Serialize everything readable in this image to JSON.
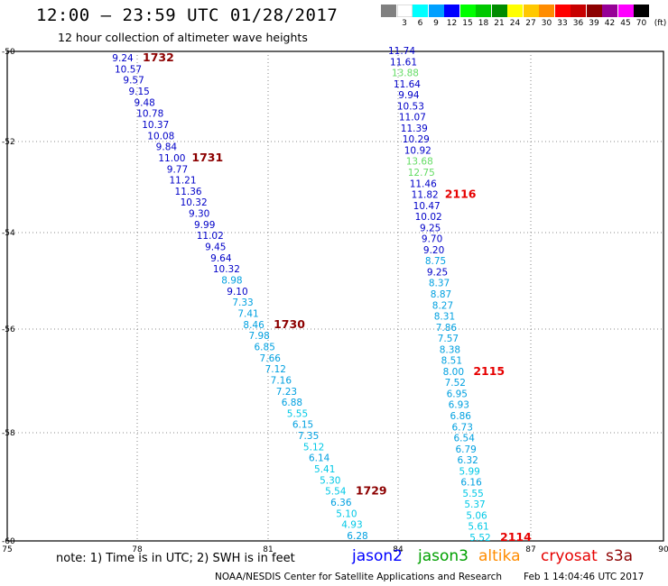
{
  "header": {
    "title": "12:00 – 23:59 UTC 01/28/2017",
    "subtitle": "12 hour collection of altimeter wave heights"
  },
  "scale": {
    "unit": "(ft)",
    "bins": [
      {
        "label": "",
        "color": "#808080"
      },
      {
        "label": "3",
        "color": "#ffffff"
      },
      {
        "label": "6",
        "color": "#00ffff"
      },
      {
        "label": "9",
        "color": "#00a0ff"
      },
      {
        "label": "12",
        "color": "#0000ff"
      },
      {
        "label": "15",
        "color": "#00ff00"
      },
      {
        "label": "18",
        "color": "#00c800"
      },
      {
        "label": "21",
        "color": "#008c00"
      },
      {
        "label": "24",
        "color": "#ffff00"
      },
      {
        "label": "27",
        "color": "#ffc800"
      },
      {
        "label": "30",
        "color": "#ff8c00"
      },
      {
        "label": "33",
        "color": "#ff0000"
      },
      {
        "label": "36",
        "color": "#c80000"
      },
      {
        "label": "39",
        "color": "#8c0000"
      },
      {
        "label": "42",
        "color": "#960096"
      },
      {
        "label": "45",
        "color": "#ff00ff"
      },
      {
        "label": "70",
        "color": "#000000"
      }
    ]
  },
  "map": {
    "lon_labels": [
      "75",
      "78",
      "81",
      "84",
      "87",
      "90"
    ],
    "lat_labels": [
      "-50",
      "-52",
      "-54",
      "-56",
      "-58",
      "-60"
    ]
  },
  "tracks": [
    {
      "points": [
        {
          "v": "9.24",
          "c": "#0000c8"
        },
        {
          "v": "10.57",
          "c": "#0000c8"
        },
        {
          "v": "9.57",
          "c": "#0000c8"
        },
        {
          "v": "9.15",
          "c": "#0000c8"
        },
        {
          "v": "9.48",
          "c": "#0000c8"
        },
        {
          "v": "10.78",
          "c": "#0000c8"
        },
        {
          "v": "10.37",
          "c": "#0000c8"
        },
        {
          "v": "10.08",
          "c": "#0000c8"
        },
        {
          "v": "9.84",
          "c": "#0000c8"
        },
        {
          "v": "11.00",
          "c": "#0000c8"
        },
        {
          "v": "9.77",
          "c": "#0000c8"
        },
        {
          "v": "11.21",
          "c": "#0000c8"
        },
        {
          "v": "11.36",
          "c": "#0000c8"
        },
        {
          "v": "10.32",
          "c": "#0000c8"
        },
        {
          "v": "9.30",
          "c": "#0000c8"
        },
        {
          "v": "9.99",
          "c": "#0000c8"
        },
        {
          "v": "11.02",
          "c": "#0000c8"
        },
        {
          "v": "9.45",
          "c": "#0000c8"
        },
        {
          "v": "9.64",
          "c": "#0000c8"
        },
        {
          "v": "10.32",
          "c": "#0000c8"
        },
        {
          "v": "8.98",
          "c": "#00a0e0"
        },
        {
          "v": "9.10",
          "c": "#0000c8"
        },
        {
          "v": "7.33",
          "c": "#00a0e0"
        },
        {
          "v": "7.41",
          "c": "#00a0e0"
        },
        {
          "v": "8.46",
          "c": "#00a0e0"
        },
        {
          "v": "7.98",
          "c": "#00a0e0"
        },
        {
          "v": "6.85",
          "c": "#00a0e0"
        },
        {
          "v": "7.66",
          "c": "#00a0e0"
        },
        {
          "v": "7.12",
          "c": "#00a0e0"
        },
        {
          "v": "7.16",
          "c": "#00a0e0"
        },
        {
          "v": "7.23",
          "c": "#00a0e0"
        },
        {
          "v": "6.88",
          "c": "#00a0e0"
        },
        {
          "v": "5.55",
          "c": "#00c8e6"
        },
        {
          "v": "6.15",
          "c": "#00a0e0"
        },
        {
          "v": "7.35",
          "c": "#00a0e0"
        },
        {
          "v": "5.12",
          "c": "#00c8e6"
        },
        {
          "v": "6.14",
          "c": "#00a0e0"
        },
        {
          "v": "5.41",
          "c": "#00c8e6"
        },
        {
          "v": "5.30",
          "c": "#00c8e6"
        },
        {
          "v": "5.54",
          "c": "#00c8e6"
        },
        {
          "v": "6.36",
          "c": "#00a0e0"
        },
        {
          "v": "5.10",
          "c": "#00c8e6"
        },
        {
          "v": "4.93",
          "c": "#00c8e6"
        },
        {
          "v": "6.28",
          "c": "#00a0e0"
        }
      ],
      "times": [
        {
          "label": "1732",
          "color": "#8c0000",
          "at": 0
        },
        {
          "label": "1731",
          "color": "#8c0000",
          "at": 9
        },
        {
          "label": "1730",
          "color": "#8c0000",
          "at": 24
        },
        {
          "label": "1729",
          "color": "#8c0000",
          "at": 39
        }
      ]
    },
    {
      "points": [
        {
          "v": "11.74",
          "c": "#0000c8"
        },
        {
          "v": "11.61",
          "c": "#0000c8"
        },
        {
          "v": "13.88",
          "c": "#64dc64"
        },
        {
          "v": "11.64",
          "c": "#0000c8"
        },
        {
          "v": "9.94",
          "c": "#0000c8"
        },
        {
          "v": "10.53",
          "c": "#0000c8"
        },
        {
          "v": "11.07",
          "c": "#0000c8"
        },
        {
          "v": "11.39",
          "c": "#0000c8"
        },
        {
          "v": "10.29",
          "c": "#0000c8"
        },
        {
          "v": "10.92",
          "c": "#0000c8"
        },
        {
          "v": "13.68",
          "c": "#64dc64"
        },
        {
          "v": "12.75",
          "c": "#64dc64"
        },
        {
          "v": "11.46",
          "c": "#0000c8"
        },
        {
          "v": "11.82",
          "c": "#0000c8"
        },
        {
          "v": "10.47",
          "c": "#0000c8"
        },
        {
          "v": "10.02",
          "c": "#0000c8"
        },
        {
          "v": "9.25",
          "c": "#0000c8"
        },
        {
          "v": "9.70",
          "c": "#0000c8"
        },
        {
          "v": "9.20",
          "c": "#0000c8"
        },
        {
          "v": "8.75",
          "c": "#00a0e0"
        },
        {
          "v": "9.25",
          "c": "#0000c8"
        },
        {
          "v": "8.37",
          "c": "#00a0e0"
        },
        {
          "v": "8.87",
          "c": "#00a0e0"
        },
        {
          "v": "8.27",
          "c": "#00a0e0"
        },
        {
          "v": "8.31",
          "c": "#00a0e0"
        },
        {
          "v": "7.86",
          "c": "#00a0e0"
        },
        {
          "v": "7.57",
          "c": "#00a0e0"
        },
        {
          "v": "8.38",
          "c": "#00a0e0"
        },
        {
          "v": "8.51",
          "c": "#00a0e0"
        },
        {
          "v": "8.00",
          "c": "#00a0e0"
        },
        {
          "v": "7.52",
          "c": "#00a0e0"
        },
        {
          "v": "6.95",
          "c": "#00a0e0"
        },
        {
          "v": "6.93",
          "c": "#00a0e0"
        },
        {
          "v": "6.86",
          "c": "#00a0e0"
        },
        {
          "v": "6.73",
          "c": "#00a0e0"
        },
        {
          "v": "6.54",
          "c": "#00a0e0"
        },
        {
          "v": "6.79",
          "c": "#00a0e0"
        },
        {
          "v": "6.32",
          "c": "#00a0e0"
        },
        {
          "v": "5.99",
          "c": "#00c8e6"
        },
        {
          "v": "6.16",
          "c": "#00a0e0"
        },
        {
          "v": "5.55",
          "c": "#00c8e6"
        },
        {
          "v": "5.37",
          "c": "#00c8e6"
        },
        {
          "v": "5.06",
          "c": "#00c8e6"
        },
        {
          "v": "5.61",
          "c": "#00c8e6"
        },
        {
          "v": "5.52",
          "c": "#00c8e6"
        }
      ],
      "times": [
        {
          "label": "2116",
          "color": "#e60000",
          "at": 13
        },
        {
          "label": "2115",
          "color": "#e60000",
          "at": 29
        },
        {
          "label": "2114",
          "color": "#e60000",
          "at": 44
        }
      ]
    }
  ],
  "footer": {
    "note": "note:  1) Time is in UTC;  2) SWH is in feet",
    "satellites": [
      {
        "name": "jason2",
        "color": "#0000ff"
      },
      {
        "name": "jason3",
        "color": "#00a000"
      },
      {
        "name": "altika",
        "color": "#ff8c00"
      },
      {
        "name": "cryosat",
        "color": "#e60000"
      },
      {
        "name": "s3a",
        "color": "#8c0000"
      }
    ],
    "credit": "NOAA/NESDIS Center for Satellite Applications and Research",
    "timestamp": "Feb  1 14:04:46 UTC 2017"
  }
}
